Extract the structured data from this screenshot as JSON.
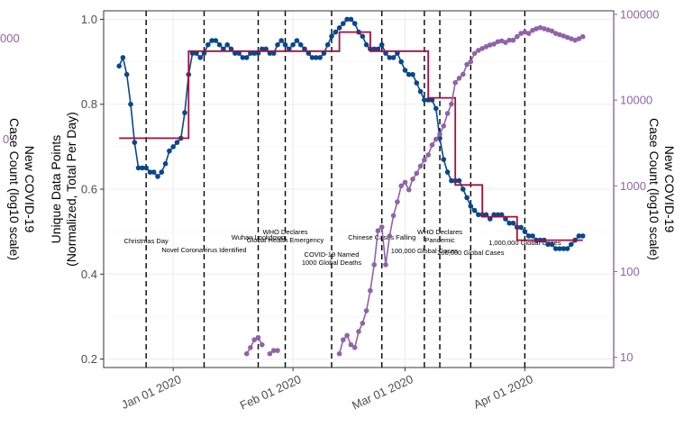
{
  "chart_data": {
    "type": "line",
    "title": "",
    "xlabel": "",
    "ylabel_left": "Unique Data Points\n(Normalized, Total Per Day)",
    "ylabel_right": "New COVID-19\nCase Count (log10 scale)",
    "ylabel_far_left_fragment": "New COVID-19\nCase Count (log10 scale)",
    "far_left_tick_fragments": [
      "000",
      "0"
    ],
    "x_range": [
      "2019-12-14",
      "2020-04-24"
    ],
    "x_ticks": [
      "2020-01-01",
      "2020-02-01",
      "2020-03-01",
      "2020-04-01"
    ],
    "x_tick_labels": [
      "Jan 01 2020",
      "Feb 01 2020",
      "Mar 01 2020",
      "Apr 01 2020"
    ],
    "y_left_range": [
      0.18,
      1.02
    ],
    "y_left_ticks": [
      0.2,
      0.4,
      0.6,
      0.8,
      1.0
    ],
    "y_left_tick_labels": [
      "0.2",
      "0.4",
      "0.6",
      "0.8",
      "1.0"
    ],
    "y_right_scale": "log10",
    "y_right_range": [
      7.6,
      110000
    ],
    "y_right_ticks": [
      10,
      100,
      1000,
      10000,
      100000
    ],
    "y_right_tick_labels": [
      "10",
      "100",
      "1000",
      "10000",
      "100000"
    ],
    "grid": true,
    "colors": {
      "normalized_series": "#08478c",
      "step_series": "#a50f3c",
      "case_series": "#9063a8",
      "right_axis": "#9063a8",
      "event_line": "#000000"
    },
    "series": [
      {
        "axis": "left",
        "style": "points-line",
        "x": [
          "2019-12-18",
          "2019-12-19",
          "2019-12-20",
          "2019-12-21",
          "2019-12-22",
          "2019-12-23",
          "2019-12-24",
          "2019-12-25",
          "2019-12-26",
          "2019-12-27",
          "2019-12-28",
          "2019-12-29",
          "2019-12-30",
          "2019-12-31",
          "2020-01-01",
          "2020-01-02",
          "2020-01-03",
          "2020-01-04",
          "2020-01-05",
          "2020-01-06",
          "2020-01-07",
          "2020-01-08",
          "2020-01-09",
          "2020-01-10",
          "2020-01-11",
          "2020-01-12",
          "2020-01-13",
          "2020-01-14",
          "2020-01-15",
          "2020-01-16",
          "2020-01-17",
          "2020-01-18",
          "2020-01-19",
          "2020-01-20",
          "2020-01-21",
          "2020-01-22",
          "2020-01-23",
          "2020-01-24",
          "2020-01-25",
          "2020-01-26",
          "2020-01-27",
          "2020-01-28",
          "2020-01-29",
          "2020-01-30",
          "2020-01-31",
          "2020-02-01",
          "2020-02-02",
          "2020-02-03",
          "2020-02-04",
          "2020-02-05",
          "2020-02-06",
          "2020-02-07",
          "2020-02-08",
          "2020-02-09",
          "2020-02-10",
          "2020-02-11",
          "2020-02-12",
          "2020-02-13",
          "2020-02-14",
          "2020-02-15",
          "2020-02-16",
          "2020-02-17",
          "2020-02-18",
          "2020-02-19",
          "2020-02-20",
          "2020-02-21",
          "2020-02-22",
          "2020-02-23",
          "2020-02-24",
          "2020-02-25",
          "2020-02-26",
          "2020-02-27",
          "2020-02-28",
          "2020-02-29",
          "2020-03-01",
          "2020-03-02",
          "2020-03-03",
          "2020-03-04",
          "2020-03-05",
          "2020-03-06",
          "2020-03-07",
          "2020-03-08",
          "2020-03-09",
          "2020-03-10",
          "2020-03-11",
          "2020-03-12",
          "2020-03-13",
          "2020-03-14",
          "2020-03-15",
          "2020-03-16",
          "2020-03-17",
          "2020-03-18",
          "2020-03-19",
          "2020-03-20",
          "2020-03-21",
          "2020-03-22",
          "2020-03-23",
          "2020-03-24",
          "2020-03-25",
          "2020-03-26",
          "2020-03-27",
          "2020-03-28",
          "2020-03-29",
          "2020-03-30",
          "2020-03-31",
          "2020-04-01",
          "2020-04-02",
          "2020-04-03",
          "2020-04-04",
          "2020-04-05",
          "2020-04-06",
          "2020-04-07",
          "2020-04-08",
          "2020-04-09",
          "2020-04-10",
          "2020-04-11",
          "2020-04-12",
          "2020-04-13",
          "2020-04-14",
          "2020-04-15",
          "2020-04-16"
        ],
        "values": [
          0.89,
          0.91,
          0.87,
          0.8,
          0.71,
          0.65,
          0.65,
          0.65,
          0.64,
          0.64,
          0.63,
          0.64,
          0.66,
          0.69,
          0.7,
          0.71,
          0.72,
          0.78,
          0.87,
          0.92,
          0.92,
          0.91,
          0.92,
          0.94,
          0.95,
          0.95,
          0.94,
          0.93,
          0.94,
          0.93,
          0.92,
          0.92,
          0.91,
          0.91,
          0.92,
          0.92,
          0.92,
          0.93,
          0.93,
          0.92,
          0.92,
          0.94,
          0.95,
          0.94,
          0.93,
          0.94,
          0.95,
          0.94,
          0.93,
          0.92,
          0.91,
          0.91,
          0.91,
          0.92,
          0.94,
          0.96,
          0.97,
          0.98,
          0.99,
          1.0,
          1.0,
          0.99,
          0.97,
          0.96,
          0.94,
          0.93,
          0.93,
          0.93,
          0.94,
          0.92,
          0.91,
          0.91,
          0.92,
          0.9,
          0.88,
          0.87,
          0.87,
          0.85,
          0.83,
          0.81,
          0.81,
          0.81,
          0.79,
          0.72,
          0.67,
          0.64,
          0.62,
          0.62,
          0.62,
          0.6,
          0.58,
          0.56,
          0.55,
          0.54,
          0.54,
          0.54,
          0.53,
          0.54,
          0.54,
          0.54,
          0.53,
          0.52,
          0.52,
          0.51,
          0.51,
          0.5,
          0.49,
          0.49,
          0.48,
          0.48,
          0.48,
          0.47,
          0.47,
          0.46,
          0.46,
          0.46,
          0.46,
          0.47,
          0.48,
          0.49,
          0.49
        ],
        "name": ""
      },
      {
        "axis": "left",
        "style": "step",
        "x": [
          "2019-12-18",
          "2020-01-05",
          "2020-01-05",
          "2020-02-13",
          "2020-02-13",
          "2020-02-21",
          "2020-02-21",
          "2020-03-07",
          "2020-03-07",
          "2020-03-14",
          "2020-03-14",
          "2020-03-21",
          "2020-03-21",
          "2020-03-30",
          "2020-03-30",
          "2020-04-12",
          "2020-04-12",
          "2020-04-16"
        ],
        "values": [
          0.72,
          0.72,
          0.925,
          0.925,
          0.97,
          0.97,
          0.925,
          0.925,
          0.815,
          0.815,
          0.61,
          0.61,
          0.535,
          0.535,
          0.48,
          0.48,
          0.48,
          0.48
        ],
        "name": ""
      },
      {
        "axis": "right",
        "style": "points-line",
        "x": [
          "2020-01-20",
          "2020-01-21",
          "2020-01-22",
          "2020-01-23",
          "2020-01-24",
          "2020-01-25",
          "2020-01-26",
          "2020-01-27",
          "2020-01-28",
          "2020-01-29",
          "2020-01-30",
          "2020-01-31",
          "2020-02-01",
          "2020-02-02",
          "2020-02-03",
          "2020-02-04",
          "2020-02-05",
          "2020-02-06",
          "2020-02-07",
          "2020-02-08",
          "2020-02-09",
          "2020-02-10",
          "2020-02-11",
          "2020-02-12",
          "2020-02-13",
          "2020-02-14",
          "2020-02-15",
          "2020-02-16",
          "2020-02-17",
          "2020-02-18",
          "2020-02-19",
          "2020-02-20",
          "2020-02-21",
          "2020-02-22",
          "2020-02-23",
          "2020-02-24",
          "2020-02-25",
          "2020-02-26",
          "2020-02-27",
          "2020-02-28",
          "2020-02-29",
          "2020-03-01",
          "2020-03-02",
          "2020-03-03",
          "2020-03-04",
          "2020-03-05",
          "2020-03-06",
          "2020-03-07",
          "2020-03-08",
          "2020-03-09",
          "2020-03-10",
          "2020-03-11",
          "2020-03-12",
          "2020-03-13",
          "2020-03-14",
          "2020-03-15",
          "2020-03-16",
          "2020-03-17",
          "2020-03-18",
          "2020-03-19",
          "2020-03-20",
          "2020-03-21",
          "2020-03-22",
          "2020-03-23",
          "2020-03-24",
          "2020-03-25",
          "2020-03-26",
          "2020-03-27",
          "2020-03-28",
          "2020-03-29",
          "2020-03-30",
          "2020-03-31",
          "2020-04-01",
          "2020-04-02",
          "2020-04-03",
          "2020-04-04",
          "2020-04-05",
          "2020-04-06",
          "2020-04-07",
          "2020-04-08",
          "2020-04-09",
          "2020-04-10",
          "2020-04-11",
          "2020-04-12",
          "2020-04-13",
          "2020-04-14",
          "2020-04-15",
          "2020-04-16"
        ],
        "values": [
          11,
          13,
          16,
          17,
          14,
          null,
          11,
          12,
          12,
          null,
          null,
          null,
          null,
          null,
          null,
          null,
          null,
          null,
          null,
          null,
          null,
          null,
          null,
          null,
          11,
          16,
          18,
          14,
          13,
          20,
          25,
          35,
          60,
          120,
          300,
          330,
          120,
          260,
          450,
          650,
          1000,
          1100,
          900,
          1200,
          1400,
          1700,
          2000,
          2300,
          3000,
          3500,
          4000,
          5000,
          7000,
          9000,
          16000,
          18000,
          20000,
          26000,
          28000,
          35000,
          38000,
          40000,
          42000,
          44000,
          45000,
          48000,
          49000,
          47000,
          50000,
          50000,
          55000,
          60000,
          62000,
          60000,
          65000,
          68000,
          70000,
          68000,
          66000,
          64000,
          60000,
          58000,
          56000,
          54000,
          52000,
          50000,
          52000,
          55000
        ],
        "name": ""
      }
    ],
    "events": [
      {
        "date": "2019-12-25",
        "label": "Christmas Day"
      },
      {
        "date": "2020-01-09",
        "label": "Novel Coronavirus Identified"
      },
      {
        "date": "2020-01-23",
        "label": "Wuhan Lockdown"
      },
      {
        "date": "2020-01-30",
        "label": "WHO Declares\nGlobal Health Emergency"
      },
      {
        "date": "2020-02-11",
        "label": "COVID-19 Named\n1000 Global Deaths"
      },
      {
        "date": "2020-02-24",
        "label": "Chinese Cases Falling"
      },
      {
        "date": "2020-03-06",
        "label": "100,000 Global Cases"
      },
      {
        "date": "2020-03-10",
        "label": "WHO Declares\nPandemic"
      },
      {
        "date": "2020-03-18",
        "label": "200,000 Global Cases"
      },
      {
        "date": "2020-04-01",
        "label": "1,000,000 Global Cases"
      }
    ]
  }
}
